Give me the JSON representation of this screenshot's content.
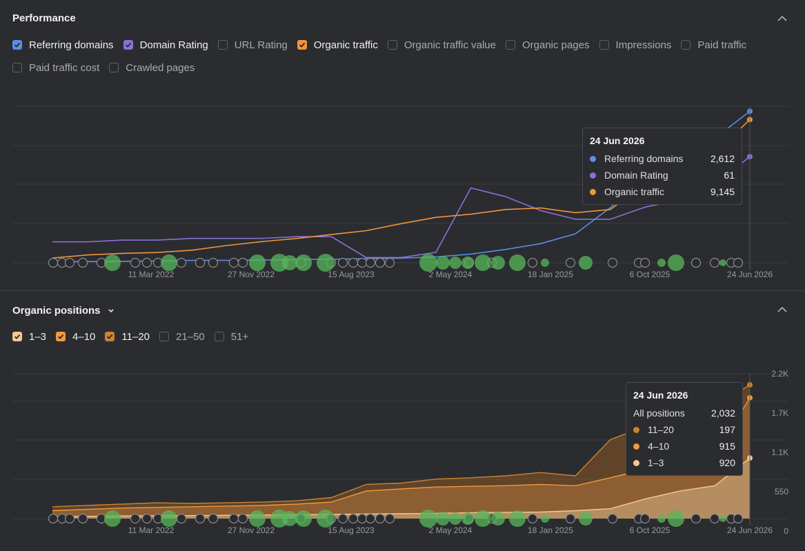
{
  "performance": {
    "title": "Performance",
    "checkboxes": [
      {
        "label": "Referring domains",
        "checked": true,
        "color": "#5b8ee6"
      },
      {
        "label": "Domain Rating",
        "checked": true,
        "color": "#8b70d8"
      },
      {
        "label": "URL Rating",
        "checked": false
      },
      {
        "label": "Organic traffic",
        "checked": true,
        "color": "#f0953a"
      },
      {
        "label": "Organic traffic value",
        "checked": false
      },
      {
        "label": "Organic pages",
        "checked": false
      },
      {
        "label": "Impressions",
        "checked": false
      },
      {
        "label": "Paid traffic",
        "checked": false
      },
      {
        "label": "Paid traffic cost",
        "checked": false
      },
      {
        "label": "Crawled pages",
        "checked": false
      }
    ],
    "x_labels": [
      "11 Mar 2022",
      "27 Nov 2022",
      "15 Aug 2023",
      "2 May 2024",
      "18 Jan 2025",
      "6 Oct 2025",
      "24 Jun 2026"
    ],
    "tooltip": {
      "date": "24 Jun 2026",
      "rows": [
        {
          "name": "Referring domains",
          "value": "2,612",
          "color": "#5b8ee6"
        },
        {
          "name": "Domain Rating",
          "value": "61",
          "color": "#8b70d8"
        },
        {
          "name": "Organic traffic",
          "value": "9,145",
          "color": "#f0953a"
        }
      ]
    }
  },
  "organic_positions": {
    "title": "Organic positions",
    "checkboxes": [
      {
        "label": "1–3",
        "checked": true,
        "color": "#f4c98f"
      },
      {
        "label": "4–10",
        "checked": true,
        "color": "#ef9a3f"
      },
      {
        "label": "11–20",
        "checked": true,
        "color": "#c98431"
      },
      {
        "label": "21–50",
        "checked": false
      },
      {
        "label": "51+",
        "checked": false
      }
    ],
    "x_labels": [
      "11 Mar 2022",
      "27 Nov 2022",
      "15 Aug 2023",
      "2 May 2024",
      "18 Jan 2025",
      "6 Oct 2025",
      "24 Jun 2026"
    ],
    "y_labels": [
      "2.2K",
      "1.7K",
      "1.1K",
      "550",
      "0"
    ],
    "tooltip": {
      "date": "24 Jun 2026",
      "all_label": "All positions",
      "all_value": "2,032",
      "rows": [
        {
          "name": "11–20",
          "value": "197",
          "color": "#c98431"
        },
        {
          "name": "4–10",
          "value": "915",
          "color": "#ef9a3f"
        },
        {
          "name": "1–3",
          "value": "920",
          "color": "#f4c98f"
        }
      ]
    }
  },
  "chart_data": [
    {
      "type": "line",
      "title": "Performance",
      "x": [
        "2021-06",
        "2021-09",
        "2021-12",
        "2022-03",
        "2022-06",
        "2022-09",
        "2022-12",
        "2023-03",
        "2023-06",
        "2023-09",
        "2023-12",
        "2024-03",
        "2024-06",
        "2024-09",
        "2024-12",
        "2025-03",
        "2025-06",
        "2025-09",
        "2025-12",
        "2026-03",
        "2026-06"
      ],
      "series": [
        {
          "name": "Referring domains",
          "values": [
            20,
            20,
            25,
            30,
            40,
            40,
            45,
            55,
            60,
            70,
            80,
            100,
            150,
            230,
            330,
            500,
            950,
            1450,
            1750,
            2150,
            2612
          ]
        },
        {
          "name": "Domain Rating",
          "values": [
            12,
            12,
            13,
            13,
            14,
            14,
            14,
            15,
            15,
            3,
            3,
            6,
            43,
            38,
            30,
            25,
            25,
            32,
            36,
            45,
            61
          ]
        },
        {
          "name": "Organic traffic",
          "values": [
            300,
            500,
            600,
            650,
            800,
            1100,
            1350,
            1550,
            1800,
            2050,
            2500,
            2900,
            3100,
            3400,
            3500,
            3200,
            3400,
            5000,
            6500,
            7000,
            9145
          ]
        }
      ],
      "xlabel": "",
      "ylabel": "",
      "grid": true
    },
    {
      "type": "area",
      "title": "Organic positions",
      "x": [
        "2021-06",
        "2021-09",
        "2021-12",
        "2022-03",
        "2022-06",
        "2022-09",
        "2022-12",
        "2023-03",
        "2023-06",
        "2023-09",
        "2023-12",
        "2024-03",
        "2024-06",
        "2024-09",
        "2024-12",
        "2025-03",
        "2025-06",
        "2025-09",
        "2025-12",
        "2026-03",
        "2026-06"
      ],
      "series": [
        {
          "name": "1–3",
          "values": [
            30,
            35,
            40,
            45,
            45,
            50,
            55,
            60,
            65,
            70,
            75,
            80,
            90,
            95,
            100,
            120,
            150,
            300,
            420,
            500,
            920
          ]
        },
        {
          "name": "4–10",
          "values": [
            120,
            140,
            160,
            170,
            180,
            190,
            200,
            220,
            250,
            420,
            450,
            480,
            490,
            500,
            520,
            500,
            620,
            750,
            800,
            950,
            1835
          ]
        },
        {
          "name": "11–20",
          "values": [
            180,
            200,
            220,
            240,
            230,
            240,
            250,
            270,
            320,
            520,
            540,
            600,
            620,
            650,
            700,
            650,
            1200,
            1400,
            1500,
            1700,
            2032
          ]
        }
      ],
      "ylim": [
        0,
        2200
      ],
      "xlabel": "",
      "ylabel": "",
      "grid": true
    }
  ]
}
